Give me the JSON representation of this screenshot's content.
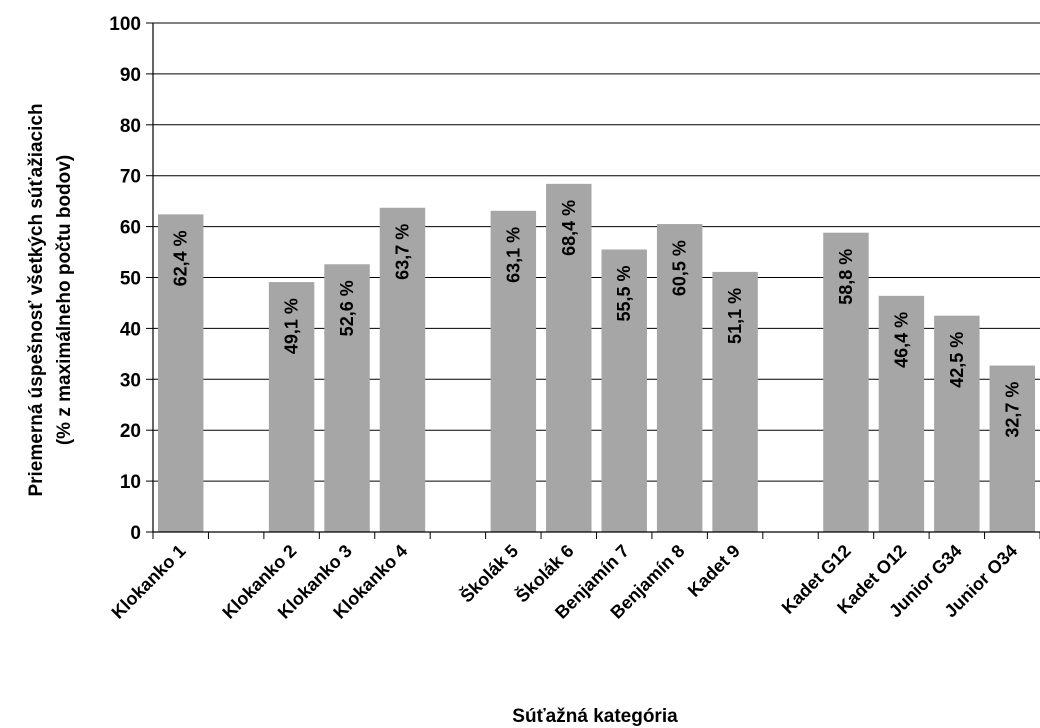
{
  "chart_data": {
    "type": "bar",
    "xlabel": "Súťažná kategória",
    "ylabel_line1": "Priemerná úspešnosť všetkých súťažiacich",
    "ylabel_line2": "(% z maximálneho počtu bodov)",
    "ylim": [
      0,
      100
    ],
    "yticks": [
      0,
      10,
      20,
      30,
      40,
      50,
      60,
      70,
      80,
      90,
      100
    ],
    "grid": true,
    "categories": [
      "Klokanko 1",
      "",
      "Klokanko 2",
      "Klokanko 3",
      "Klokanko 4",
      "",
      "Školák 5",
      "Školák 6",
      "Benjamín 7",
      "Benjamín 8",
      "Kadet 9",
      "",
      "Kadet G12",
      "Kadet O12",
      "Junior G34",
      "Junior O34"
    ],
    "values": [
      62.4,
      null,
      49.1,
      52.6,
      63.7,
      null,
      63.1,
      68.4,
      55.5,
      60.5,
      51.1,
      null,
      58.8,
      46.4,
      42.5,
      32.7
    ],
    "value_labels": [
      "62,4 %",
      "",
      "49,1 %",
      "52,6 %",
      "63,7 %",
      "",
      "63,1 %",
      "68,4 %",
      "55,5 %",
      "60,5 %",
      "51,1 %",
      "",
      "58,8 %",
      "46,4 %",
      "42,5 %",
      "32,7 %"
    ],
    "bar_color": "#a6a6a6"
  }
}
